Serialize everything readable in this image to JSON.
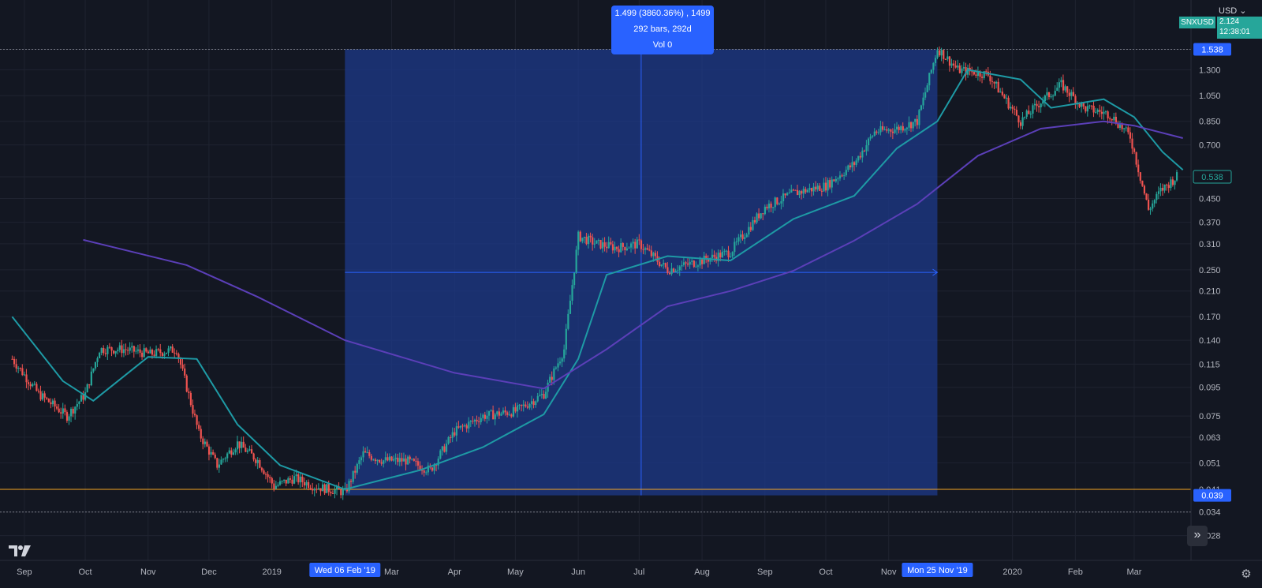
{
  "header": {
    "currency": "USD",
    "symbol": "SNXUSD",
    "last_price": "2.124",
    "countdown": "12:38:01"
  },
  "measure": {
    "line1": "1.499 (3860.36%) , 1499",
    "line2": "292 bars, 292d",
    "line3": "Vol 0"
  },
  "labels": {
    "hi_label": "1.538",
    "lo_label": "0.039",
    "ema_label": "0.538",
    "start_date": "Wed 06 Feb '19",
    "end_date": "Mon 25 Nov '19"
  },
  "colors": {
    "background": "#131722",
    "bull": "#26a69a",
    "bear": "#ef5350",
    "ema_fast": "#1e9aa5",
    "ma_slow": "#5b3fb8",
    "measure_fill": "#1e3a8a",
    "measure_line": "#2962ff",
    "hline": "#f5a623"
  },
  "chart_data": {
    "type": "line",
    "series": [
      {
        "role": "price",
        "x": [
          "2018-08-26",
          "2018-09-08",
          "2018-09-22",
          "2018-10-01",
          "2018-10-08",
          "2018-10-20",
          "2018-11-02",
          "2018-11-15",
          "2018-11-26",
          "2018-12-05",
          "2018-12-15",
          "2018-12-25",
          "2019-01-02",
          "2019-01-12",
          "2019-01-22",
          "2019-02-06",
          "2019-02-15",
          "2019-02-25",
          "2019-03-08",
          "2019-03-20",
          "2019-04-01",
          "2019-04-15",
          "2019-05-01",
          "2019-05-15",
          "2019-05-25",
          "2019-06-01",
          "2019-06-10",
          "2019-06-20",
          "2019-07-01",
          "2019-07-15",
          "2019-08-01",
          "2019-08-15",
          "2019-09-01",
          "2019-09-15",
          "2019-10-01",
          "2019-10-15",
          "2019-10-25",
          "2019-11-05",
          "2019-11-15",
          "2019-11-25",
          "2019-12-05",
          "2019-12-20",
          "2020-01-05",
          "2020-01-15",
          "2020-01-25",
          "2020-02-05",
          "2020-02-18",
          "2020-02-28",
          "2020-03-08",
          "2020-03-14",
          "2020-03-22"
        ],
        "values": [
          0.12,
          0.09,
          0.075,
          0.09,
          0.13,
          0.13,
          0.125,
          0.13,
          0.065,
          0.05,
          0.06,
          0.052,
          0.042,
          0.045,
          0.042,
          0.04,
          0.055,
          0.052,
          0.052,
          0.048,
          0.066,
          0.075,
          0.078,
          0.09,
          0.13,
          0.33,
          0.31,
          0.3,
          0.31,
          0.25,
          0.27,
          0.29,
          0.42,
          0.47,
          0.5,
          0.6,
          0.78,
          0.8,
          0.85,
          1.55,
          1.3,
          1.25,
          0.85,
          1.0,
          1.15,
          0.95,
          0.9,
          0.75,
          0.41,
          0.48,
          0.54
        ]
      },
      {
        "role": "ema",
        "x": [
          "2018-08-26",
          "2018-09-20",
          "2018-10-05",
          "2018-11-01",
          "2018-11-25",
          "2018-12-15",
          "2019-01-05",
          "2019-02-06",
          "2019-03-15",
          "2019-04-15",
          "2019-05-15",
          "2019-06-01",
          "2019-06-15",
          "2019-07-15",
          "2019-08-15",
          "2019-09-15",
          "2019-10-15",
          "2019-11-05",
          "2019-11-25",
          "2019-12-10",
          "2020-01-05",
          "2020-01-20",
          "2020-02-15",
          "2020-03-01",
          "2020-03-15",
          "2020-03-25"
        ],
        "values": [
          0.17,
          0.1,
          0.085,
          0.122,
          0.12,
          0.07,
          0.05,
          0.041,
          0.048,
          0.058,
          0.076,
          0.12,
          0.24,
          0.28,
          0.27,
          0.38,
          0.46,
          0.68,
          0.85,
          1.3,
          1.2,
          0.95,
          1.02,
          0.88,
          0.66,
          0.57
        ]
      },
      {
        "role": "ma",
        "x": [
          "2018-09-30",
          "2018-11-20",
          "2018-12-25",
          "2019-02-06",
          "2019-04-01",
          "2019-05-15",
          "2019-06-15",
          "2019-07-15",
          "2019-08-15",
          "2019-09-15",
          "2019-10-15",
          "2019-11-15",
          "2019-12-15",
          "2020-01-15",
          "2020-02-15",
          "2020-03-01",
          "2020-03-25"
        ],
        "values": [
          0.32,
          0.26,
          0.2,
          0.14,
          0.107,
          0.094,
          0.13,
          0.185,
          0.21,
          0.248,
          0.318,
          0.43,
          0.64,
          0.8,
          0.85,
          0.82,
          0.74
        ]
      }
    ],
    "y_scale": "log",
    "ylim": [
      0.026,
      1.9
    ],
    "xlim": [
      "2018-08-20",
      "2020-03-29"
    ],
    "y_ticks": [
      "0.028",
      "0.034",
      "0.041",
      "0.051",
      "0.063",
      "0.075",
      "0.095",
      "0.115",
      "0.140",
      "0.170",
      "0.210",
      "0.250",
      "0.310",
      "0.370",
      "0.450",
      "0.538",
      "0.700",
      "0.850",
      "1.050",
      "1.300",
      "1.538"
    ],
    "x_ticks": [
      {
        "date": "2018-09-01",
        "label": "Sep"
      },
      {
        "date": "2018-10-01",
        "label": "Oct"
      },
      {
        "date": "2018-11-01",
        "label": "Nov"
      },
      {
        "date": "2018-12-01",
        "label": "Dec"
      },
      {
        "date": "2019-01-01",
        "label": "2019"
      },
      {
        "date": "2019-03-01",
        "label": "Mar"
      },
      {
        "date": "2019-04-01",
        "label": "Apr"
      },
      {
        "date": "2019-05-01",
        "label": "May"
      },
      {
        "date": "2019-06-01",
        "label": "Jun"
      },
      {
        "date": "2019-07-01",
        "label": "Jul"
      },
      {
        "date": "2019-08-01",
        "label": "Aug"
      },
      {
        "date": "2019-09-01",
        "label": "Sep"
      },
      {
        "date": "2019-10-01",
        "label": "Oct"
      },
      {
        "date": "2019-11-01",
        "label": "Nov"
      },
      {
        "date": "2020-01-01",
        "label": "2020"
      },
      {
        "date": "2020-02-01",
        "label": "Feb"
      },
      {
        "date": "2020-03-01",
        "label": "Mar"
      }
    ],
    "measure_range": {
      "x0": "2019-02-06",
      "x1": "2019-11-25",
      "y0": 0.039,
      "y1": 1.538
    },
    "horizontal_line": 0.041,
    "grid": true
  }
}
